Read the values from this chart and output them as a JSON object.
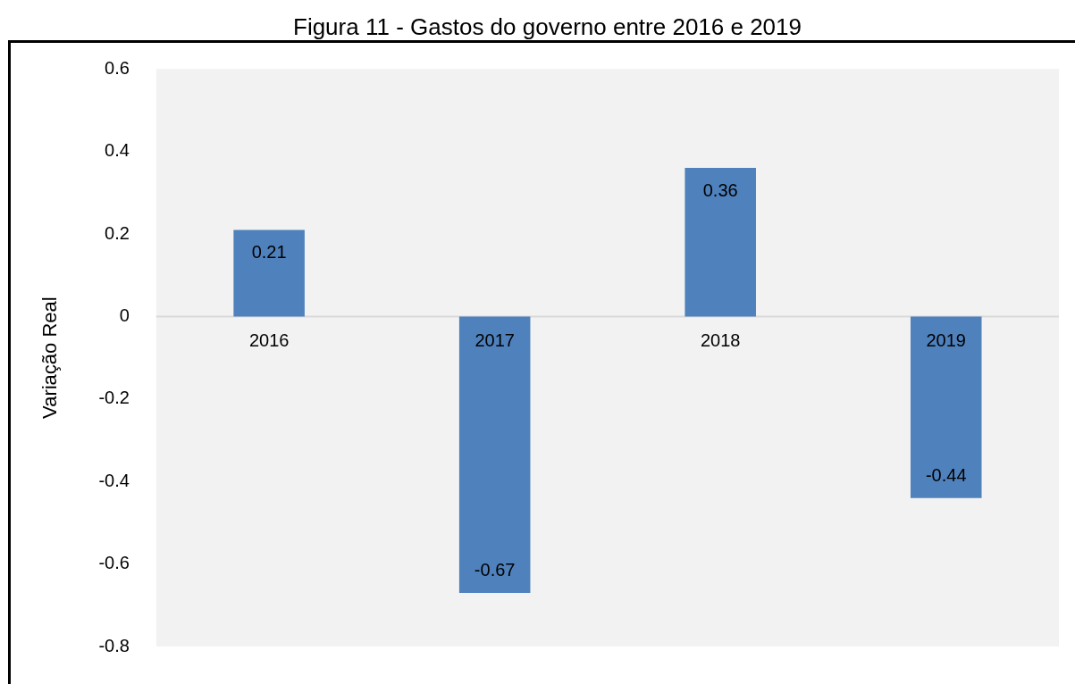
{
  "chart_data": {
    "type": "bar",
    "title": "Figura 11 - Gastos do governo entre 2016 e 2019",
    "ylabel": "Variação Real",
    "categories": [
      "2016",
      "2017",
      "2018",
      "2019"
    ],
    "values": [
      0.21,
      -0.67,
      0.36,
      -0.44
    ],
    "color": "#4f81bd",
    "ylim": [
      -0.8,
      0.6
    ],
    "yticks": [
      -0.8,
      -0.6,
      -0.4,
      -0.2,
      0,
      0.2,
      0.4,
      0.6
    ],
    "grid": false,
    "legend": false,
    "data_labels": true
  }
}
